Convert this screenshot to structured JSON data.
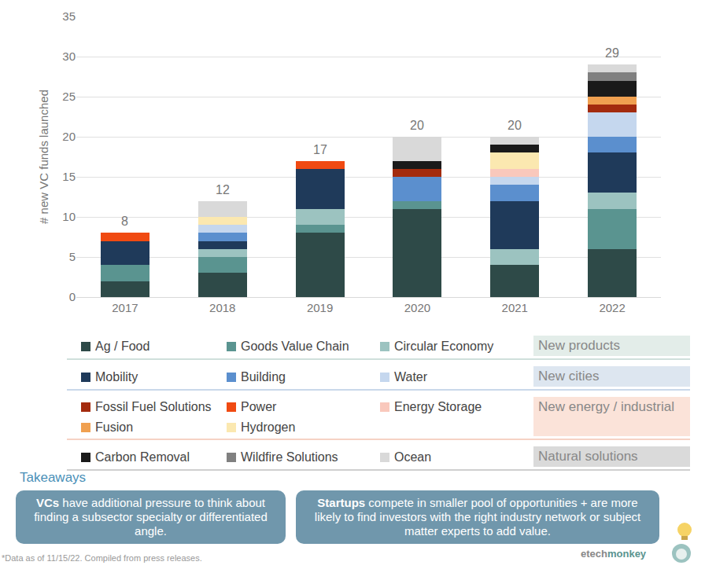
{
  "chart_data": {
    "type": "bar",
    "stacked": true,
    "grid": true,
    "y_label": "# new VC funds launched",
    "categories": [
      "2017",
      "2018",
      "2019",
      "2020",
      "2021",
      "2022"
    ],
    "totals": [
      8,
      12,
      17,
      20,
      20,
      29
    ],
    "ylim": [
      0,
      35
    ],
    "yticks": [
      0,
      5,
      10,
      15,
      20,
      25,
      30,
      35
    ],
    "series": [
      {
        "name": "Ag / Food",
        "color": "#2e4a48",
        "values": [
          2,
          3,
          8,
          11,
          4,
          6
        ]
      },
      {
        "name": "Goods Value Chain",
        "color": "#5a9490",
        "values": [
          2,
          2,
          1,
          1,
          0,
          5
        ]
      },
      {
        "name": "Circular Economy",
        "color": "#9cc3c0",
        "values": [
          0,
          1,
          2,
          0,
          2,
          2
        ]
      },
      {
        "name": "Mobility",
        "color": "#1f3a5a",
        "values": [
          3,
          1,
          5,
          0,
          6,
          5
        ]
      },
      {
        "name": "Building",
        "color": "#5b8fce",
        "values": [
          0,
          1,
          0,
          3,
          2,
          2
        ]
      },
      {
        "name": "Water",
        "color": "#c5d7ee",
        "values": [
          0,
          1,
          0,
          0,
          1,
          3
        ]
      },
      {
        "name": "Fossil Fuel Solutions",
        "color": "#a32b0e",
        "values": [
          0,
          0,
          0,
          1,
          0,
          1
        ]
      },
      {
        "name": "Power",
        "color": "#f04a12",
        "values": [
          1,
          0,
          1,
          0,
          0,
          0
        ]
      },
      {
        "name": "Energy Storage",
        "color": "#f9c8bc",
        "values": [
          0,
          0,
          0,
          0,
          1,
          0
        ]
      },
      {
        "name": "Fusion",
        "color": "#f0a050",
        "values": [
          0,
          0,
          0,
          0,
          0,
          1
        ]
      },
      {
        "name": "Hydrogen",
        "color": "#fbe8b0",
        "values": [
          0,
          1,
          0,
          0,
          2,
          0
        ]
      },
      {
        "name": "Carbon Removal",
        "color": "#1a1a1a",
        "values": [
          0,
          0,
          0,
          1,
          1,
          2
        ]
      },
      {
        "name": "Wildfire Solutions",
        "color": "#808080",
        "values": [
          0,
          0,
          0,
          0,
          0,
          1
        ]
      },
      {
        "name": "Ocean",
        "color": "#d9d9d9",
        "values": [
          0,
          2,
          0,
          3,
          1,
          1
        ]
      }
    ]
  },
  "legend_panel": {
    "groups": [
      {
        "label": "New products",
        "members": [
          "Ag / Food",
          "Goods Value Chain",
          "Circular Economy"
        ]
      },
      {
        "label": "New cities",
        "members": [
          "Mobility",
          "Building",
          "Water"
        ]
      },
      {
        "label": "New energy / industrial",
        "members": [
          "Fossil Fuel Solutions",
          "Power",
          "Energy Storage",
          "Fusion",
          "Hydrogen"
        ]
      },
      {
        "label": "Natural solutions",
        "members": [
          "Carbon Removal",
          "Wildfire Solutions",
          "Ocean"
        ]
      }
    ]
  },
  "takeaways": {
    "heading": "Takeaways",
    "boxes": [
      {
        "bold": "VCs",
        "text": "have additional pressure to think about finding a subsector specialty or differentiated angle."
      },
      {
        "bold": "Startups",
        "text": "compete in smaller pool of opportunities + are more likely to find investors with the right industry network or subject matter experts to add value."
      }
    ]
  },
  "footnote": "*Data as of 11/15/22. Compiled from press releases.",
  "brand": [
    "etech",
    "monkey"
  ]
}
